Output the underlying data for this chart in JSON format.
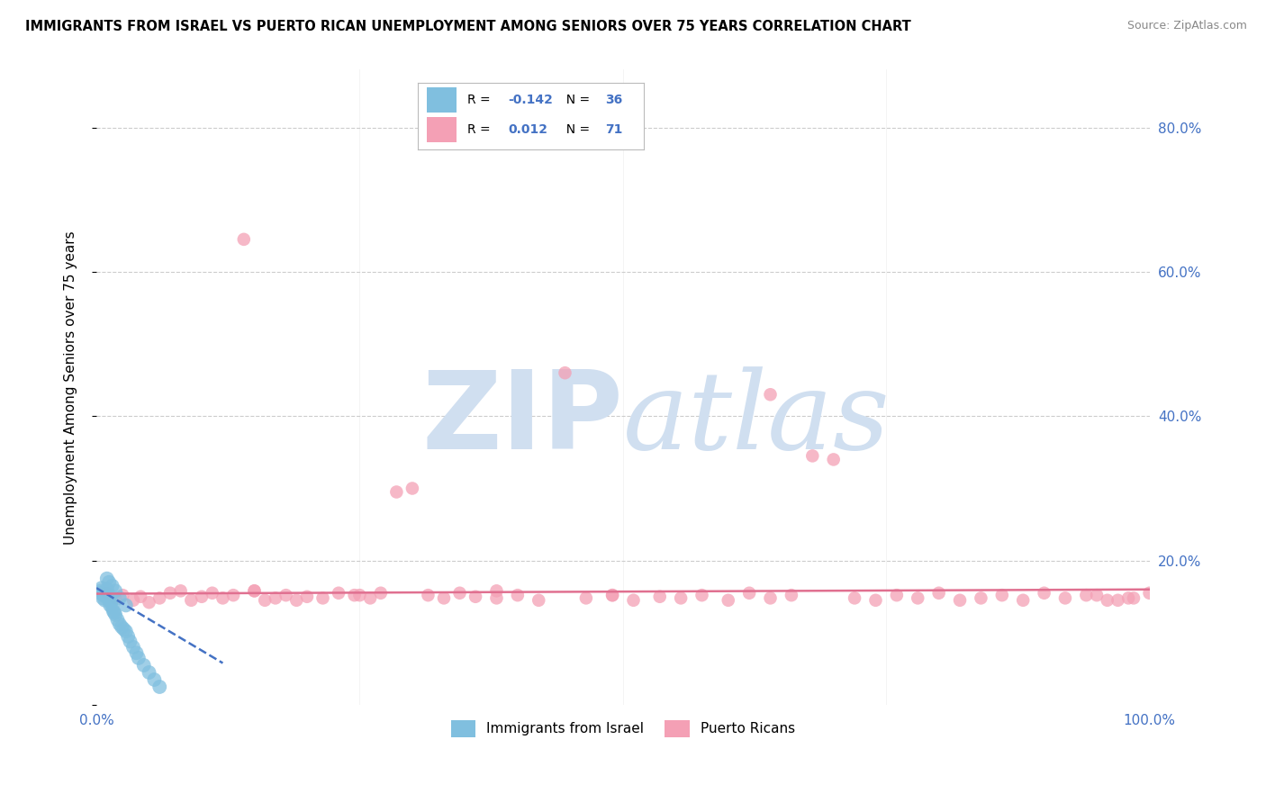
{
  "title": "IMMIGRANTS FROM ISRAEL VS PUERTO RICAN UNEMPLOYMENT AMONG SENIORS OVER 75 YEARS CORRELATION CHART",
  "source": "Source: ZipAtlas.com",
  "ylabel": "Unemployment Among Seniors over 75 years",
  "xlim": [
    0,
    1.0
  ],
  "ylim": [
    0,
    0.88
  ],
  "yticks": [
    0.0,
    0.2,
    0.4,
    0.6,
    0.8
  ],
  "ytick_labels": [
    "",
    "20.0%",
    "40.0%",
    "60.0%",
    "80.0%"
  ],
  "xticks": [
    0.0,
    0.25,
    0.5,
    0.75,
    1.0
  ],
  "xtick_labels": [
    "0.0%",
    "",
    "",
    "",
    "100.0%"
  ],
  "legend_label1": "Immigrants from Israel",
  "legend_label2": "Puerto Ricans",
  "r1_text": "-0.142",
  "r2_text": "0.012",
  "n1_text": "36",
  "n2_text": "71",
  "color_blue": "#80bfdf",
  "color_pink": "#f4a0b5",
  "color_blue_line": "#4472c4",
  "color_pink_line": "#e07090",
  "color_axis_labels": "#4472c4",
  "watermark_color": "#d0dff0",
  "background_color": "#ffffff",
  "grid_color": "#cccccc",
  "blue_x": [
    0.003,
    0.004,
    0.005,
    0.006,
    0.007,
    0.008,
    0.009,
    0.01,
    0.011,
    0.012,
    0.013,
    0.014,
    0.015,
    0.016,
    0.017,
    0.018,
    0.02,
    0.022,
    0.024,
    0.026,
    0.028,
    0.03,
    0.032,
    0.035,
    0.038,
    0.04,
    0.045,
    0.05,
    0.055,
    0.06,
    0.01,
    0.012,
    0.015,
    0.018,
    0.022,
    0.028
  ],
  "blue_y": [
    0.155,
    0.158,
    0.162,
    0.148,
    0.152,
    0.145,
    0.15,
    0.16,
    0.155,
    0.145,
    0.138,
    0.142,
    0.135,
    0.13,
    0.128,
    0.125,
    0.118,
    0.112,
    0.108,
    0.105,
    0.102,
    0.095,
    0.088,
    0.08,
    0.072,
    0.065,
    0.055,
    0.045,
    0.035,
    0.025,
    0.175,
    0.17,
    0.165,
    0.158,
    0.148,
    0.138
  ],
  "pink_x": [
    0.01,
    0.018,
    0.025,
    0.035,
    0.042,
    0.05,
    0.06,
    0.07,
    0.08,
    0.09,
    0.1,
    0.11,
    0.12,
    0.13,
    0.14,
    0.15,
    0.16,
    0.17,
    0.18,
    0.19,
    0.2,
    0.215,
    0.23,
    0.245,
    0.26,
    0.27,
    0.285,
    0.3,
    0.315,
    0.33,
    0.345,
    0.36,
    0.38,
    0.4,
    0.42,
    0.445,
    0.465,
    0.49,
    0.51,
    0.535,
    0.555,
    0.575,
    0.6,
    0.62,
    0.64,
    0.66,
    0.68,
    0.7,
    0.72,
    0.74,
    0.76,
    0.78,
    0.8,
    0.82,
    0.84,
    0.86,
    0.88,
    0.9,
    0.92,
    0.94,
    0.96,
    0.98,
    1.0,
    0.95,
    0.97,
    0.985,
    0.15,
    0.25,
    0.38,
    0.49,
    0.64
  ],
  "pink_y": [
    0.155,
    0.148,
    0.152,
    0.145,
    0.15,
    0.142,
    0.148,
    0.155,
    0.158,
    0.145,
    0.15,
    0.155,
    0.148,
    0.152,
    0.645,
    0.158,
    0.145,
    0.148,
    0.152,
    0.145,
    0.15,
    0.148,
    0.155,
    0.152,
    0.148,
    0.155,
    0.295,
    0.3,
    0.152,
    0.148,
    0.155,
    0.15,
    0.158,
    0.152,
    0.145,
    0.46,
    0.148,
    0.152,
    0.145,
    0.15,
    0.148,
    0.152,
    0.145,
    0.155,
    0.148,
    0.152,
    0.345,
    0.34,
    0.148,
    0.145,
    0.152,
    0.148,
    0.155,
    0.145,
    0.148,
    0.152,
    0.145,
    0.155,
    0.148,
    0.152,
    0.145,
    0.148,
    0.155,
    0.152,
    0.145,
    0.148,
    0.158,
    0.152,
    0.148,
    0.152,
    0.43
  ],
  "blue_trend_x": [
    0.0,
    0.12
  ],
  "blue_trend_y": [
    0.162,
    0.058
  ],
  "pink_trend_x": [
    0.0,
    1.0
  ],
  "pink_trend_y": [
    0.154,
    0.16
  ]
}
